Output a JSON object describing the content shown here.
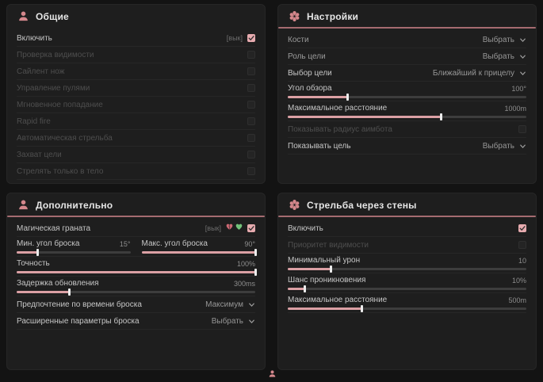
{
  "colors": {
    "accent_pink": "#dba0a4",
    "underline_pink": "#a56b70",
    "icon_pink": "#d4878c",
    "icon_green": "#74c27a",
    "panel_bg": "#1e1e1e",
    "page_bg": "#131313"
  },
  "panels": [
    {
      "id": "general",
      "title": "Общие",
      "icon": "person-icon",
      "rows": [
        {
          "type": "checkbox",
          "label": "Включить",
          "tag": "[вык]",
          "checked": true,
          "enabled": true
        },
        {
          "type": "checkbox",
          "label": "Проверка видимости",
          "checked": false,
          "enabled": false
        },
        {
          "type": "checkbox",
          "label": "Сайлент нож",
          "checked": false,
          "enabled": false
        },
        {
          "type": "checkbox",
          "label": "Управление пулями",
          "checked": false,
          "enabled": false
        },
        {
          "type": "checkbox",
          "label": "Мгновенное попадание",
          "checked": false,
          "enabled": false
        },
        {
          "type": "checkbox",
          "label": "Rapid fire",
          "checked": false,
          "enabled": false
        },
        {
          "type": "checkbox",
          "label": "Автоматическая стрельба",
          "checked": false,
          "enabled": false
        },
        {
          "type": "checkbox",
          "label": "Захват цели",
          "checked": false,
          "enabled": false
        },
        {
          "type": "checkbox",
          "label": "Стрелять только в тело",
          "checked": false,
          "enabled": false
        }
      ]
    },
    {
      "id": "settings",
      "title": "Настройки",
      "icon": "flower-icon",
      "rows": [
        {
          "type": "dropdown",
          "label": "Кости",
          "value": "Выбрать",
          "muted": true
        },
        {
          "type": "dropdown",
          "label": "Роль цели",
          "value": "Выбрать",
          "muted": true
        },
        {
          "type": "dropdown",
          "label": "Выбор цели",
          "value": "Ближайший к прицелу"
        },
        {
          "type": "slider",
          "label": "Угол обзора",
          "value": "100°",
          "percent": 25
        },
        {
          "type": "slider",
          "label": "Максимальное расстояние",
          "value": "1000m",
          "percent": 64
        },
        {
          "type": "checkbox",
          "label": "Показывать радиус аимбота",
          "checked": false,
          "enabled": false
        },
        {
          "type": "dropdown",
          "label": "Показывать цель",
          "value": "Выбрать"
        }
      ]
    },
    {
      "id": "additional",
      "title": "Дополнительно",
      "icon": "person-icon",
      "rows": [
        {
          "type": "checkbox",
          "label": "Магическая граната",
          "tag": "[вык]",
          "checked": true,
          "enabled": true,
          "icons": [
            "broken-heart-icon",
            "heart-icon"
          ]
        },
        {
          "type": "sliderpair",
          "items": [
            {
              "label": "Мин. угол броска",
              "value": "15°",
              "percent": 18
            },
            {
              "label": "Макс. угол броска",
              "value": "90°",
              "percent": 100
            }
          ]
        },
        {
          "type": "slider",
          "label": "Точность",
          "value": "100%",
          "percent": 100
        },
        {
          "type": "slider",
          "label": "Задержка обновления",
          "value": "300ms",
          "percent": 22
        },
        {
          "type": "dropdown",
          "label": "Предпочтение по времени броска",
          "value": "Максимум"
        },
        {
          "type": "dropdown",
          "label": "Расширенные параметры броска",
          "value": "Выбрать"
        }
      ]
    },
    {
      "id": "wallbang",
      "title": "Стрельба через стены",
      "icon": "flower-icon",
      "rows": [
        {
          "type": "checkbox",
          "label": "Включить",
          "checked": true,
          "enabled": true
        },
        {
          "type": "checkbox",
          "label": "Приоритет видимости",
          "checked": false,
          "enabled": false
        },
        {
          "type": "slider",
          "label": "Минимальный урон",
          "value": "10",
          "percent": 18
        },
        {
          "type": "slider",
          "label": "Шанс проникновения",
          "value": "10%",
          "percent": 7
        },
        {
          "type": "slider",
          "label": "Максимальное расстояние",
          "value": "500m",
          "percent": 31
        }
      ]
    }
  ],
  "footer": {
    "scroll_indicator": "person-icon"
  }
}
